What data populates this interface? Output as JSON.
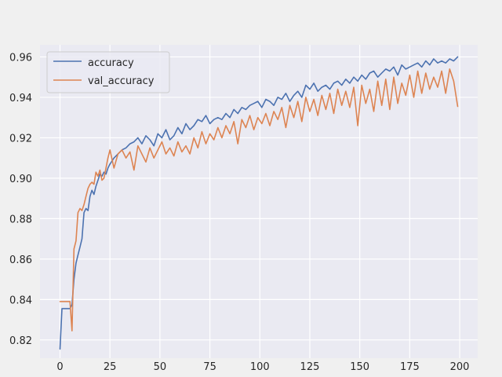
{
  "chart_data": {
    "type": "line",
    "title": "",
    "xlabel": "",
    "ylabel": "",
    "xlim": [
      -10,
      209
    ],
    "ylim": [
      0.811,
      0.966
    ],
    "xticks": [
      0,
      25,
      50,
      75,
      100,
      125,
      150,
      175,
      200
    ],
    "yticks": [
      0.82,
      0.84,
      0.86,
      0.88,
      0.9,
      0.92,
      0.94,
      0.96
    ],
    "ytick_labels": [
      "0.82",
      "0.84",
      "0.86",
      "0.88",
      "0.90",
      "0.92",
      "0.94",
      "0.96"
    ],
    "grid": true,
    "legend_position": "top-left",
    "series": [
      {
        "name": "accuracy",
        "color": "#4c72b0",
        "x": [
          0,
          1,
          3,
          5,
          6,
          7,
          8,
          9,
          10,
          11,
          12,
          13,
          14,
          15,
          16,
          17,
          18,
          19,
          20,
          21,
          22,
          23,
          24,
          25,
          27,
          29,
          31,
          33,
          35,
          37,
          39,
          41,
          43,
          45,
          47,
          49,
          51,
          53,
          55,
          57,
          59,
          61,
          63,
          65,
          67,
          69,
          71,
          73,
          75,
          77,
          79,
          81,
          83,
          85,
          87,
          89,
          91,
          93,
          95,
          97,
          99,
          101,
          103,
          105,
          107,
          109,
          111,
          113,
          115,
          117,
          119,
          121,
          123,
          125,
          127,
          129,
          131,
          133,
          135,
          137,
          139,
          141,
          143,
          145,
          147,
          149,
          151,
          153,
          155,
          157,
          159,
          161,
          163,
          165,
          167,
          169,
          171,
          173,
          175,
          177,
          179,
          181,
          183,
          185,
          187,
          189,
          191,
          193,
          195,
          197,
          199
        ],
        "values": [
          0.8155,
          0.8355,
          0.8355,
          0.8355,
          0.8375,
          0.85,
          0.858,
          0.862,
          0.866,
          0.87,
          0.883,
          0.885,
          0.884,
          0.891,
          0.894,
          0.892,
          0.896,
          0.899,
          0.902,
          0.901,
          0.903,
          0.902,
          0.905,
          0.907,
          0.91,
          0.912,
          0.914,
          0.915,
          0.917,
          0.918,
          0.92,
          0.917,
          0.921,
          0.919,
          0.916,
          0.922,
          0.92,
          0.924,
          0.919,
          0.921,
          0.925,
          0.922,
          0.927,
          0.924,
          0.926,
          0.929,
          0.928,
          0.931,
          0.927,
          0.929,
          0.93,
          0.929,
          0.932,
          0.93,
          0.934,
          0.932,
          0.935,
          0.934,
          0.936,
          0.937,
          0.938,
          0.935,
          0.939,
          0.938,
          0.936,
          0.94,
          0.939,
          0.942,
          0.938,
          0.941,
          0.943,
          0.94,
          0.946,
          0.944,
          0.947,
          0.943,
          0.945,
          0.946,
          0.944,
          0.947,
          0.948,
          0.946,
          0.949,
          0.947,
          0.95,
          0.948,
          0.951,
          0.949,
          0.952,
          0.953,
          0.95,
          0.952,
          0.954,
          0.953,
          0.955,
          0.951,
          0.956,
          0.954,
          0.955,
          0.956,
          0.957,
          0.955,
          0.958,
          0.956,
          0.959,
          0.957,
          0.958,
          0.957,
          0.959,
          0.958,
          0.96
        ]
      },
      {
        "name": "val_accuracy",
        "color": "#dd8452",
        "x": [
          0,
          1,
          2,
          3,
          4,
          5,
          6,
          7,
          8,
          9,
          10,
          11,
          12,
          13,
          14,
          15,
          16,
          17,
          18,
          19,
          20,
          21,
          22,
          23,
          24,
          25,
          27,
          29,
          31,
          33,
          35,
          37,
          39,
          41,
          43,
          45,
          47,
          49,
          51,
          53,
          55,
          57,
          59,
          61,
          63,
          65,
          67,
          69,
          71,
          73,
          75,
          77,
          79,
          81,
          83,
          85,
          87,
          89,
          91,
          93,
          95,
          97,
          99,
          101,
          103,
          105,
          107,
          109,
          111,
          113,
          115,
          117,
          119,
          121,
          123,
          125,
          127,
          129,
          131,
          133,
          135,
          137,
          139,
          141,
          143,
          145,
          147,
          149,
          151,
          153,
          155,
          157,
          159,
          161,
          163,
          165,
          167,
          169,
          171,
          173,
          175,
          177,
          179,
          181,
          183,
          185,
          187,
          189,
          191,
          193,
          195,
          197,
          199
        ],
        "values": [
          0.839,
          0.839,
          0.839,
          0.839,
          0.839,
          0.839,
          0.8245,
          0.865,
          0.869,
          0.883,
          0.885,
          0.884,
          0.887,
          0.891,
          0.895,
          0.897,
          0.898,
          0.897,
          0.903,
          0.901,
          0.904,
          0.899,
          0.9,
          0.905,
          0.91,
          0.914,
          0.905,
          0.912,
          0.914,
          0.91,
          0.913,
          0.904,
          0.916,
          0.912,
          0.908,
          0.915,
          0.91,
          0.914,
          0.918,
          0.912,
          0.915,
          0.911,
          0.918,
          0.913,
          0.916,
          0.912,
          0.92,
          0.915,
          0.923,
          0.917,
          0.922,
          0.919,
          0.925,
          0.92,
          0.926,
          0.922,
          0.928,
          0.917,
          0.929,
          0.925,
          0.931,
          0.924,
          0.93,
          0.927,
          0.932,
          0.926,
          0.933,
          0.929,
          0.935,
          0.925,
          0.936,
          0.93,
          0.938,
          0.928,
          0.94,
          0.933,
          0.939,
          0.931,
          0.941,
          0.934,
          0.942,
          0.932,
          0.944,
          0.936,
          0.943,
          0.935,
          0.945,
          0.926,
          0.946,
          0.937,
          0.944,
          0.933,
          0.948,
          0.936,
          0.949,
          0.934,
          0.95,
          0.937,
          0.947,
          0.941,
          0.951,
          0.94,
          0.953,
          0.942,
          0.952,
          0.944,
          0.95,
          0.945,
          0.953,
          0.942,
          0.954,
          0.948,
          0.9355
        ]
      }
    ]
  }
}
